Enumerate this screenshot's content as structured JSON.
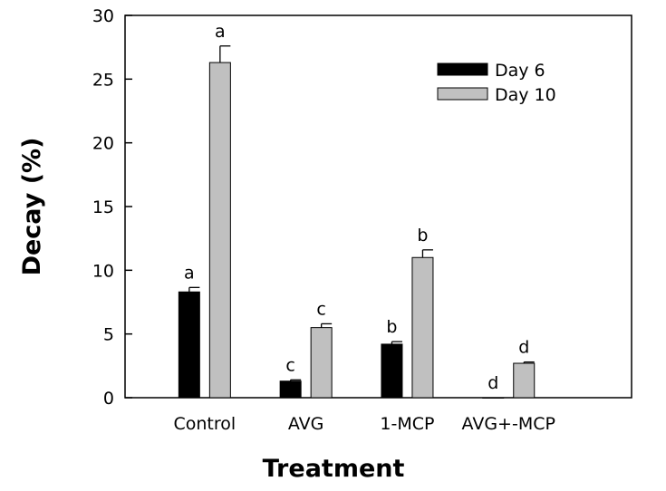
{
  "chart_data": {
    "type": "bar",
    "title": "",
    "xlabel": "Treatment",
    "ylabel": "Decay (%)",
    "ylim": [
      0,
      30
    ],
    "yticks": [
      0,
      5,
      10,
      15,
      20,
      25,
      30
    ],
    "categories": [
      "Control",
      "AVG",
      "1-MCP",
      "AVG+-MCP"
    ],
    "series": [
      {
        "name": "Day 6",
        "color": "#000000",
        "values": [
          8.3,
          1.3,
          4.2,
          0
        ],
        "errors": [
          0.35,
          0.1,
          0.2,
          0
        ],
        "labels": [
          "a",
          "c",
          "b",
          "d"
        ]
      },
      {
        "name": "Day 10",
        "color": "#c0c0c0",
        "values": [
          26.3,
          5.5,
          11.0,
          2.7
        ],
        "errors": [
          1.3,
          0.3,
          0.6,
          0.1
        ],
        "labels": [
          "a",
          "c",
          "b",
          "d"
        ]
      }
    ],
    "legend_position": "top-right"
  }
}
